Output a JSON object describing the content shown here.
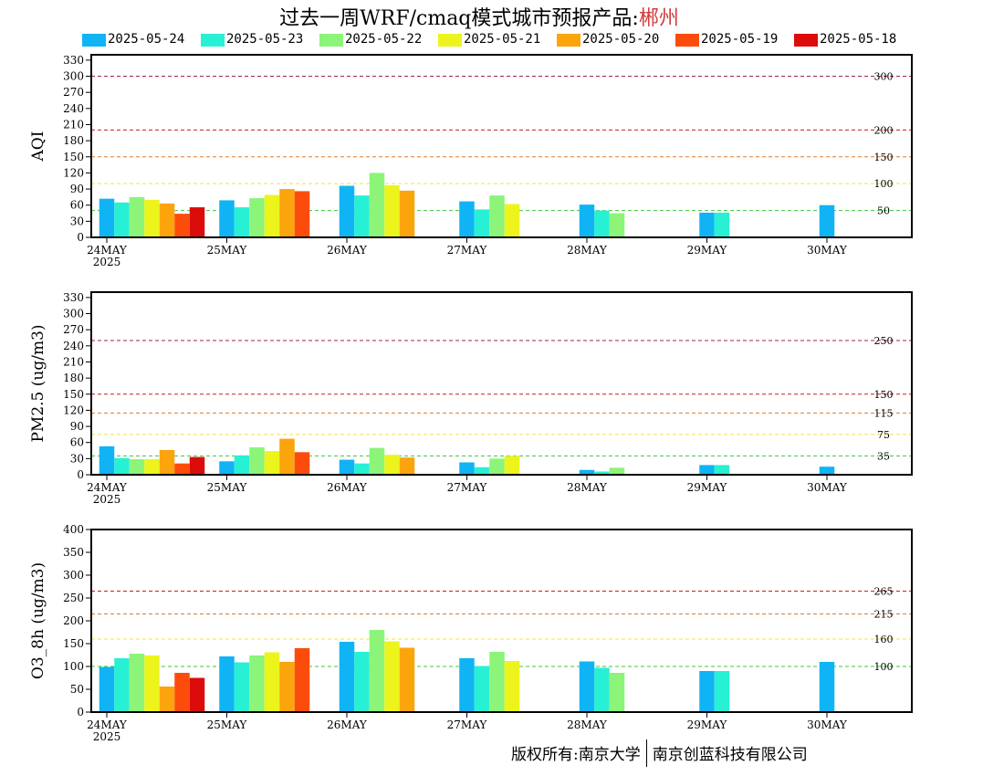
{
  "title": {
    "prefix": "过去一周WRF/cmaq模式城市预报产品:",
    "city": "郴州"
  },
  "copyright": {
    "owner": "版权所有:南京大学",
    "company": "南京创蓝科技有限公司"
  },
  "colors": {
    "2025-05-24": "#10b4f4",
    "2025-05-23": "#28f0d4",
    "2025-05-22": "#8cf478",
    "2025-05-21": "#ecf41c",
    "2025-05-20": "#fca40c",
    "2025-05-19": "#fc4c0c",
    "2025-05-18": "#dc0c0c"
  },
  "chart_data": [
    {
      "type": "bar",
      "ylabel": "AQI",
      "ylim": [
        0,
        340
      ],
      "yticks": [
        0,
        30,
        60,
        90,
        120,
        150,
        180,
        210,
        240,
        270,
        300,
        330
      ],
      "categories": [
        "24MAY",
        "25MAY",
        "26MAY",
        "27MAY",
        "28MAY",
        "29MAY",
        "30MAY"
      ],
      "first_category_sublabel": "2025",
      "thresholds": [
        {
          "value": 300,
          "label": "300",
          "color": "#a0205a"
        },
        {
          "value": 200,
          "label": "200",
          "color": "#c81e1e"
        },
        {
          "value": 150,
          "label": "150",
          "color": "#e07a2a"
        },
        {
          "value": 100,
          "label": "100",
          "color": "#f0e442"
        },
        {
          "value": 50,
          "label": "50",
          "color": "#3cc83c"
        }
      ],
      "series": [
        {
          "name": "2025-05-24",
          "values": [
            72,
            69,
            96,
            67,
            61,
            46,
            60
          ]
        },
        {
          "name": "2025-05-23",
          "values": [
            65,
            56,
            78,
            52,
            50,
            46,
            null
          ]
        },
        {
          "name": "2025-05-22",
          "values": [
            75,
            73,
            120,
            78,
            45,
            null,
            null
          ]
        },
        {
          "name": "2025-05-21",
          "values": [
            70,
            79,
            97,
            62,
            null,
            null,
            null
          ]
        },
        {
          "name": "2025-05-20",
          "values": [
            63,
            90,
            87,
            null,
            null,
            null,
            null
          ]
        },
        {
          "name": "2025-05-19",
          "values": [
            44,
            86,
            null,
            null,
            null,
            null,
            null
          ]
        },
        {
          "name": "2025-05-18",
          "values": [
            56,
            null,
            null,
            null,
            null,
            null,
            null
          ]
        }
      ]
    },
    {
      "type": "bar",
      "ylabel": "PM2.5 (ug/m3)",
      "ylim": [
        0,
        340
      ],
      "yticks": [
        0,
        30,
        60,
        90,
        120,
        150,
        180,
        210,
        240,
        270,
        300,
        330
      ],
      "categories": [
        "24MAY",
        "25MAY",
        "26MAY",
        "27MAY",
        "28MAY",
        "29MAY",
        "30MAY"
      ],
      "first_category_sublabel": "2025",
      "thresholds": [
        {
          "value": 250,
          "label": "250",
          "color": "#a0205a"
        },
        {
          "value": 150,
          "label": "150",
          "color": "#c81e1e"
        },
        {
          "value": 115,
          "label": "115",
          "color": "#e07a2a"
        },
        {
          "value": 75,
          "label": "75",
          "color": "#f0e442"
        },
        {
          "value": 35,
          "label": "35",
          "color": "#3cc83c"
        }
      ],
      "series": [
        {
          "name": "2025-05-24",
          "values": [
            53,
            25,
            28,
            23,
            9,
            18,
            15
          ]
        },
        {
          "name": "2025-05-23",
          "values": [
            31,
            36,
            21,
            14,
            6,
            18,
            null
          ]
        },
        {
          "name": "2025-05-22",
          "values": [
            29,
            51,
            50,
            30,
            13,
            null,
            null
          ]
        },
        {
          "name": "2025-05-21",
          "values": [
            29,
            44,
            37,
            35,
            null,
            null,
            null
          ]
        },
        {
          "name": "2025-05-20",
          "values": [
            46,
            67,
            32,
            null,
            null,
            null,
            null
          ]
        },
        {
          "name": "2025-05-19",
          "values": [
            21,
            42,
            null,
            null,
            null,
            null,
            null
          ]
        },
        {
          "name": "2025-05-18",
          "values": [
            33,
            null,
            null,
            null,
            null,
            null,
            null
          ]
        }
      ]
    },
    {
      "type": "bar",
      "ylabel": "O3_8h (ug/m3)",
      "ylim": [
        0,
        400
      ],
      "yticks": [
        0,
        50,
        100,
        150,
        200,
        250,
        300,
        350,
        400
      ],
      "categories": [
        "24MAY",
        "25MAY",
        "26MAY",
        "27MAY",
        "28MAY",
        "29MAY",
        "30MAY"
      ],
      "first_category_sublabel": "2025",
      "thresholds": [
        {
          "value": 265,
          "label": "265",
          "color": "#c81e1e"
        },
        {
          "value": 215,
          "label": "215",
          "color": "#e07a2a"
        },
        {
          "value": 160,
          "label": "160",
          "color": "#f0e442"
        },
        {
          "value": 100,
          "label": "100",
          "color": "#3cc83c"
        }
      ],
      "series": [
        {
          "name": "2025-05-24",
          "values": [
            99,
            122,
            154,
            118,
            111,
            90,
            110
          ]
        },
        {
          "name": "2025-05-23",
          "values": [
            118,
            109,
            132,
            101,
            97,
            90,
            null
          ]
        },
        {
          "name": "2025-05-22",
          "values": [
            128,
            124,
            180,
            132,
            86,
            null,
            null
          ]
        },
        {
          "name": "2025-05-21",
          "values": [
            124,
            131,
            155,
            112,
            null,
            null,
            null
          ]
        },
        {
          "name": "2025-05-20",
          "values": [
            56,
            110,
            141,
            null,
            null,
            null,
            null
          ]
        },
        {
          "name": "2025-05-19",
          "values": [
            86,
            140,
            null,
            null,
            null,
            null,
            null
          ]
        },
        {
          "name": "2025-05-18",
          "values": [
            75,
            null,
            null,
            null,
            null,
            null,
            null
          ]
        }
      ]
    }
  ]
}
